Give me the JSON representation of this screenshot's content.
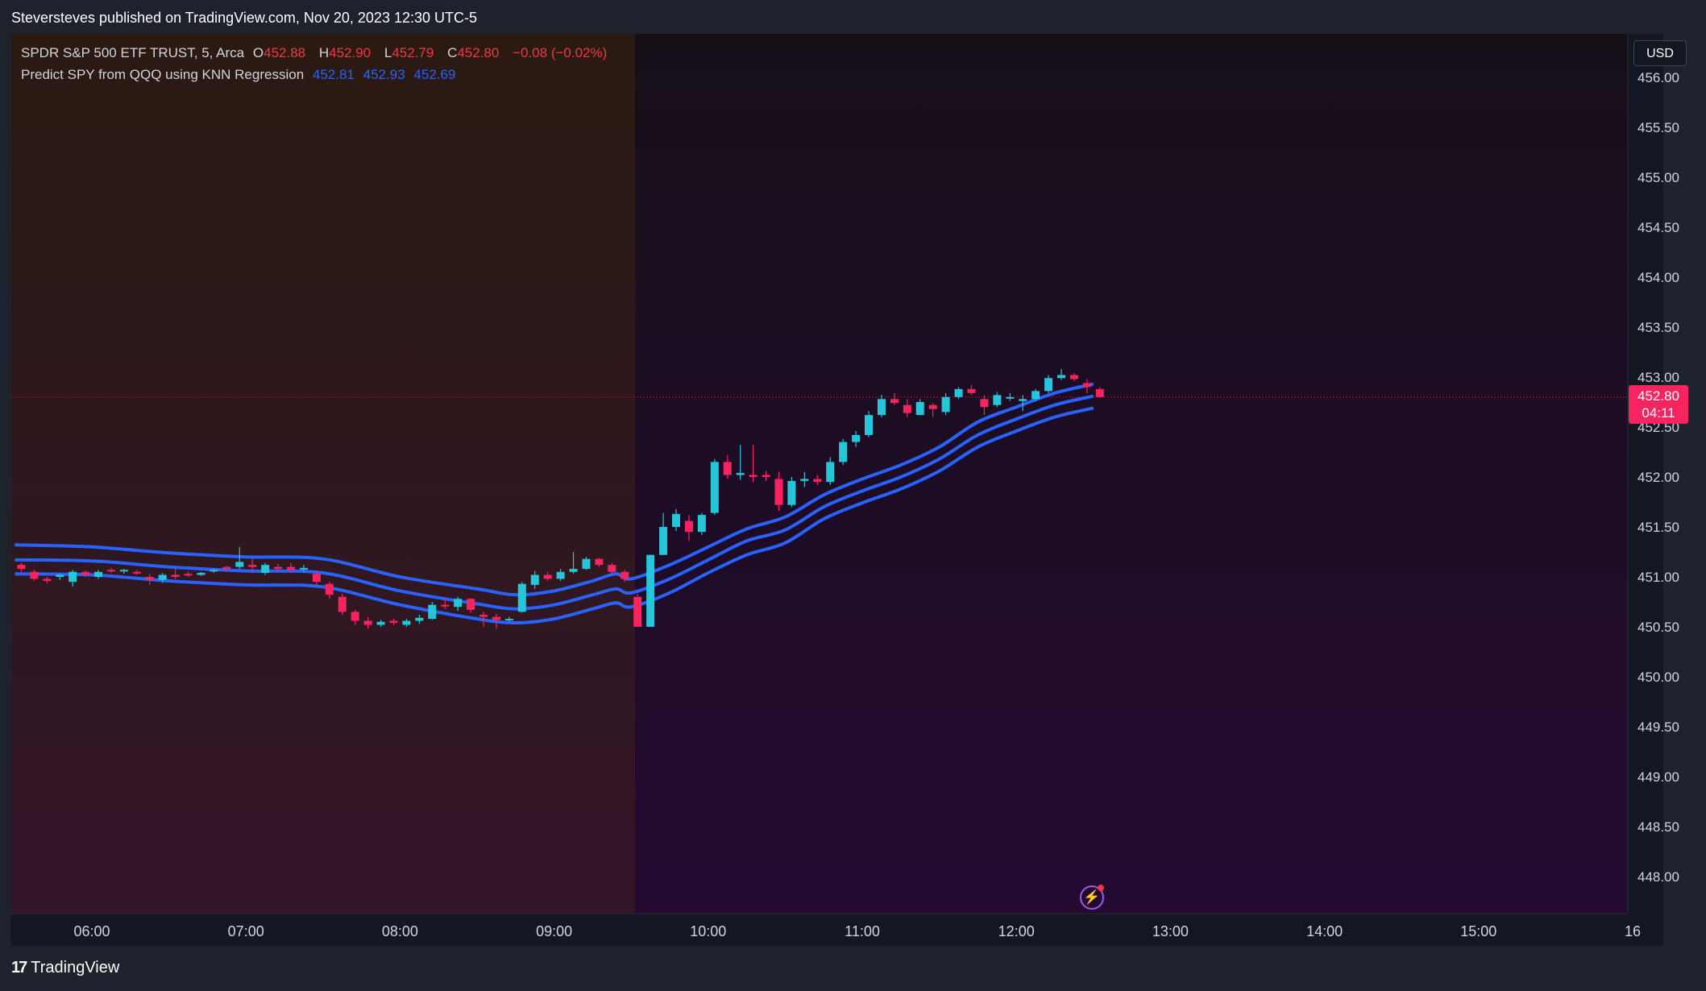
{
  "header": {
    "publish_text": "Steversteves published on TradingView.com, Nov 20, 2023 12:30 UTC-5"
  },
  "legend": {
    "symbol": "SPDR S&P 500 ETF TRUST, 5, Arca",
    "o_label": "O",
    "o_value": "452.88",
    "h_label": "H",
    "h_value": "452.90",
    "l_label": "L",
    "l_value": "452.79",
    "c_label": "C",
    "c_value": "452.80",
    "change": "−0.08 (−0.02%)",
    "indicator_name": "Predict SPY from QQQ using KNN Regression",
    "indicator_values": [
      "452.81",
      "452.93",
      "452.69"
    ]
  },
  "currency_button": "USD",
  "last_price": {
    "price": "452.80",
    "countdown": "04:11"
  },
  "footer": {
    "brand": "TradingView"
  },
  "icons": {
    "logo": "tradingview-logo-icon",
    "flash": "lightning-icon"
  },
  "colors": {
    "up": "#26c6da",
    "down": "#f7245f",
    "band": "#2962ff",
    "accent_red": "#f23645"
  },
  "chart_data": {
    "type": "candlestick",
    "timeframe": "5",
    "currency": "USD",
    "ylim": [
      447.75,
      456.2
    ],
    "y_ticks": [
      "456.00",
      "455.50",
      "455.00",
      "454.50",
      "454.00",
      "453.50",
      "453.00",
      "452.50",
      "452.00",
      "451.50",
      "451.00",
      "450.50",
      "450.00",
      "449.50",
      "449.00",
      "448.50",
      "448.00"
    ],
    "x_ticks": [
      "06:00",
      "07:00",
      "08:00",
      "09:00",
      "10:00",
      "11:00",
      "12:00",
      "13:00",
      "14:00",
      "15:00",
      "16"
    ],
    "x_range_hours": [
      5.5,
      16.05
    ],
    "premarket_end": "09:30",
    "last_price": 452.8,
    "candles": [
      [
        "05:30",
        451.12,
        451.14,
        451.05,
        451.08
      ],
      [
        "05:35",
        451.05,
        451.07,
        450.96,
        450.98
      ],
      [
        "05:40",
        450.98,
        451.0,
        450.94,
        450.96
      ],
      [
        "05:45",
        451.0,
        451.03,
        450.97,
        451.02
      ],
      [
        "05:50",
        450.95,
        451.07,
        450.9,
        451.05
      ],
      [
        "05:55",
        451.05,
        451.06,
        451.0,
        451.02
      ],
      [
        "06:00",
        451.0,
        451.07,
        450.98,
        451.05
      ],
      [
        "06:05",
        451.07,
        451.09,
        451.04,
        451.06
      ],
      [
        "06:10",
        451.06,
        451.08,
        451.03,
        451.07
      ],
      [
        "06:15",
        451.05,
        451.07,
        451.02,
        451.04
      ],
      [
        "06:20",
        451.0,
        451.03,
        450.92,
        450.97
      ],
      [
        "06:25",
        450.97,
        451.04,
        450.94,
        451.02
      ],
      [
        "06:30",
        451.02,
        451.08,
        450.98,
        451.0
      ],
      [
        "06:35",
        451.03,
        451.05,
        451.0,
        451.02
      ],
      [
        "06:40",
        451.02,
        451.05,
        451.01,
        451.04
      ],
      [
        "06:45",
        451.06,
        451.08,
        451.04,
        451.07
      ],
      [
        "06:50",
        451.1,
        451.11,
        451.05,
        451.08
      ],
      [
        "06:55",
        451.1,
        451.3,
        451.08,
        451.15
      ],
      [
        "07:00",
        451.12,
        451.18,
        451.04,
        451.1
      ],
      [
        "07:05",
        451.04,
        451.14,
        451.02,
        451.12
      ],
      [
        "07:10",
        451.1,
        451.13,
        451.06,
        451.08
      ],
      [
        "07:15",
        451.1,
        451.14,
        451.05,
        451.07
      ],
      [
        "07:20",
        451.08,
        451.12,
        451.05,
        451.09
      ],
      [
        "07:25",
        451.03,
        451.06,
        450.92,
        450.95
      ],
      [
        "07:30",
        450.93,
        450.95,
        450.78,
        450.82
      ],
      [
        "07:35",
        450.8,
        450.83,
        450.62,
        450.65
      ],
      [
        "07:40",
        450.65,
        450.67,
        450.52,
        450.56
      ],
      [
        "07:45",
        450.56,
        450.6,
        450.48,
        450.52
      ],
      [
        "07:50",
        450.52,
        450.57,
        450.5,
        450.55
      ],
      [
        "07:55",
        450.56,
        450.58,
        450.52,
        450.54
      ],
      [
        "08:00",
        450.52,
        450.58,
        450.5,
        450.56
      ],
      [
        "08:05",
        450.56,
        450.62,
        450.53,
        450.59
      ],
      [
        "08:10",
        450.58,
        450.75,
        450.57,
        450.72
      ],
      [
        "08:15",
        450.72,
        450.78,
        450.68,
        450.71
      ],
      [
        "08:20",
        450.7,
        450.8,
        450.66,
        450.78
      ],
      [
        "08:25",
        450.78,
        450.79,
        450.64,
        450.67
      ],
      [
        "08:30",
        450.62,
        450.65,
        450.5,
        450.6
      ],
      [
        "08:35",
        450.6,
        450.63,
        450.48,
        450.57
      ],
      [
        "08:40",
        450.57,
        450.6,
        450.55,
        450.58
      ],
      [
        "08:45",
        450.65,
        450.95,
        450.64,
        450.93
      ],
      [
        "08:50",
        450.92,
        451.06,
        450.88,
        451.02
      ],
      [
        "08:55",
        451.02,
        451.05,
        450.96,
        450.98
      ],
      [
        "09:00",
        450.98,
        451.08,
        450.96,
        451.05
      ],
      [
        "09:05",
        451.05,
        451.25,
        451.03,
        451.08
      ],
      [
        "09:10",
        451.08,
        451.2,
        451.07,
        451.18
      ],
      [
        "09:15",
        451.18,
        451.19,
        451.1,
        451.12
      ],
      [
        "09:20",
        451.12,
        451.14,
        451.02,
        451.05
      ],
      [
        "09:25",
        451.05,
        451.07,
        450.95,
        450.98
      ],
      [
        "09:30",
        450.8,
        450.83,
        450.5,
        450.5
      ],
      [
        "09:35",
        450.5,
        451.22,
        450.5,
        451.22
      ],
      [
        "09:40",
        451.22,
        451.64,
        451.22,
        451.5
      ],
      [
        "09:45",
        451.5,
        451.68,
        451.46,
        451.63
      ],
      [
        "09:50",
        451.56,
        451.62,
        451.36,
        451.45
      ],
      [
        "09:55",
        451.45,
        451.64,
        451.42,
        451.62
      ],
      [
        "10:00",
        451.64,
        452.18,
        451.62,
        452.15
      ],
      [
        "10:05",
        452.15,
        452.22,
        451.98,
        452.02
      ],
      [
        "10:10",
        452.02,
        452.32,
        451.97,
        452.04
      ],
      [
        "10:15",
        452.02,
        452.32,
        451.95,
        452.0
      ],
      [
        "10:20",
        452.02,
        452.06,
        451.96,
        452.0
      ],
      [
        "10:25",
        451.98,
        452.05,
        451.66,
        451.72
      ],
      [
        "10:30",
        451.72,
        452.0,
        451.7,
        451.96
      ],
      [
        "10:35",
        451.96,
        452.05,
        451.9,
        451.98
      ],
      [
        "10:40",
        451.98,
        452.02,
        451.92,
        451.95
      ],
      [
        "10:45",
        451.95,
        452.2,
        451.92,
        452.15
      ],
      [
        "10:50",
        452.15,
        452.38,
        452.12,
        452.35
      ],
      [
        "10:55",
        452.35,
        452.46,
        452.3,
        452.42
      ],
      [
        "11:00",
        452.42,
        452.66,
        452.4,
        452.62
      ],
      [
        "11:05",
        452.62,
        452.82,
        452.6,
        452.78
      ],
      [
        "11:10",
        452.78,
        452.84,
        452.72,
        452.74
      ],
      [
        "11:15",
        452.72,
        452.78,
        452.6,
        452.64
      ],
      [
        "11:20",
        452.62,
        452.78,
        452.62,
        452.75
      ],
      [
        "11:25",
        452.72,
        452.74,
        452.6,
        452.68
      ],
      [
        "11:30",
        452.65,
        452.84,
        452.62,
        452.8
      ],
      [
        "11:35",
        452.8,
        452.9,
        452.78,
        452.88
      ],
      [
        "11:40",
        452.88,
        452.92,
        452.82,
        452.84
      ],
      [
        "11:45",
        452.78,
        452.82,
        452.62,
        452.7
      ],
      [
        "11:50",
        452.72,
        452.85,
        452.7,
        452.82
      ],
      [
        "11:55",
        452.8,
        452.84,
        452.76,
        452.8
      ],
      [
        "12:00",
        452.76,
        452.82,
        452.66,
        452.78
      ],
      [
        "12:05",
        452.78,
        452.88,
        452.76,
        452.86
      ],
      [
        "12:10",
        452.86,
        453.02,
        452.84,
        452.99
      ],
      [
        "12:15",
        452.99,
        453.08,
        452.97,
        453.02
      ],
      [
        "12:20",
        453.02,
        453.04,
        452.96,
        452.98
      ],
      [
        "12:25",
        452.94,
        452.98,
        452.84,
        452.9
      ],
      [
        "12:30",
        452.88,
        452.9,
        452.79,
        452.8
      ]
    ],
    "series": [
      {
        "name": "Upper",
        "color": "#2962ff",
        "points": [
          [
            5.5,
            451.32
          ],
          [
            6.0,
            451.3
          ],
          [
            6.5,
            451.24
          ],
          [
            7.0,
            451.2
          ],
          [
            7.5,
            451.18
          ],
          [
            8.0,
            451.0
          ],
          [
            8.5,
            450.88
          ],
          [
            8.75,
            450.82
          ],
          [
            9.0,
            450.86
          ],
          [
            9.25,
            450.96
          ],
          [
            9.4,
            451.03
          ],
          [
            9.5,
            450.98
          ],
          [
            9.75,
            451.12
          ],
          [
            10.0,
            451.3
          ],
          [
            10.25,
            451.48
          ],
          [
            10.5,
            451.6
          ],
          [
            10.75,
            451.82
          ],
          [
            11.0,
            451.98
          ],
          [
            11.25,
            452.12
          ],
          [
            11.5,
            452.3
          ],
          [
            11.75,
            452.55
          ],
          [
            12.0,
            452.7
          ],
          [
            12.25,
            452.84
          ],
          [
            12.5,
            452.93
          ]
        ]
      },
      {
        "name": "Mid",
        "color": "#2962ff",
        "points": [
          [
            5.5,
            451.17
          ],
          [
            6.0,
            451.16
          ],
          [
            6.5,
            451.1
          ],
          [
            7.0,
            451.06
          ],
          [
            7.5,
            451.04
          ],
          [
            8.0,
            450.86
          ],
          [
            8.5,
            450.73
          ],
          [
            8.75,
            450.68
          ],
          [
            9.0,
            450.72
          ],
          [
            9.25,
            450.82
          ],
          [
            9.4,
            450.88
          ],
          [
            9.5,
            450.84
          ],
          [
            9.75,
            450.98
          ],
          [
            10.0,
            451.17
          ],
          [
            10.25,
            451.36
          ],
          [
            10.5,
            451.47
          ],
          [
            10.75,
            451.7
          ],
          [
            11.0,
            451.86
          ],
          [
            11.25,
            452.0
          ],
          [
            11.5,
            452.18
          ],
          [
            11.75,
            452.42
          ],
          [
            12.0,
            452.58
          ],
          [
            12.25,
            452.72
          ],
          [
            12.5,
            452.81
          ]
        ]
      },
      {
        "name": "Lower",
        "color": "#2962ff",
        "points": [
          [
            5.5,
            451.03
          ],
          [
            6.0,
            451.02
          ],
          [
            6.5,
            450.96
          ],
          [
            7.0,
            450.92
          ],
          [
            7.5,
            450.9
          ],
          [
            8.0,
            450.72
          ],
          [
            8.5,
            450.58
          ],
          [
            8.75,
            450.54
          ],
          [
            9.0,
            450.58
          ],
          [
            9.25,
            450.68
          ],
          [
            9.4,
            450.74
          ],
          [
            9.5,
            450.7
          ],
          [
            9.75,
            450.84
          ],
          [
            10.0,
            451.04
          ],
          [
            10.25,
            451.22
          ],
          [
            10.5,
            451.34
          ],
          [
            10.75,
            451.58
          ],
          [
            11.0,
            451.74
          ],
          [
            11.25,
            451.88
          ],
          [
            11.5,
            452.06
          ],
          [
            11.75,
            452.3
          ],
          [
            12.0,
            452.46
          ],
          [
            12.25,
            452.6
          ],
          [
            12.5,
            452.69
          ]
        ]
      }
    ]
  }
}
